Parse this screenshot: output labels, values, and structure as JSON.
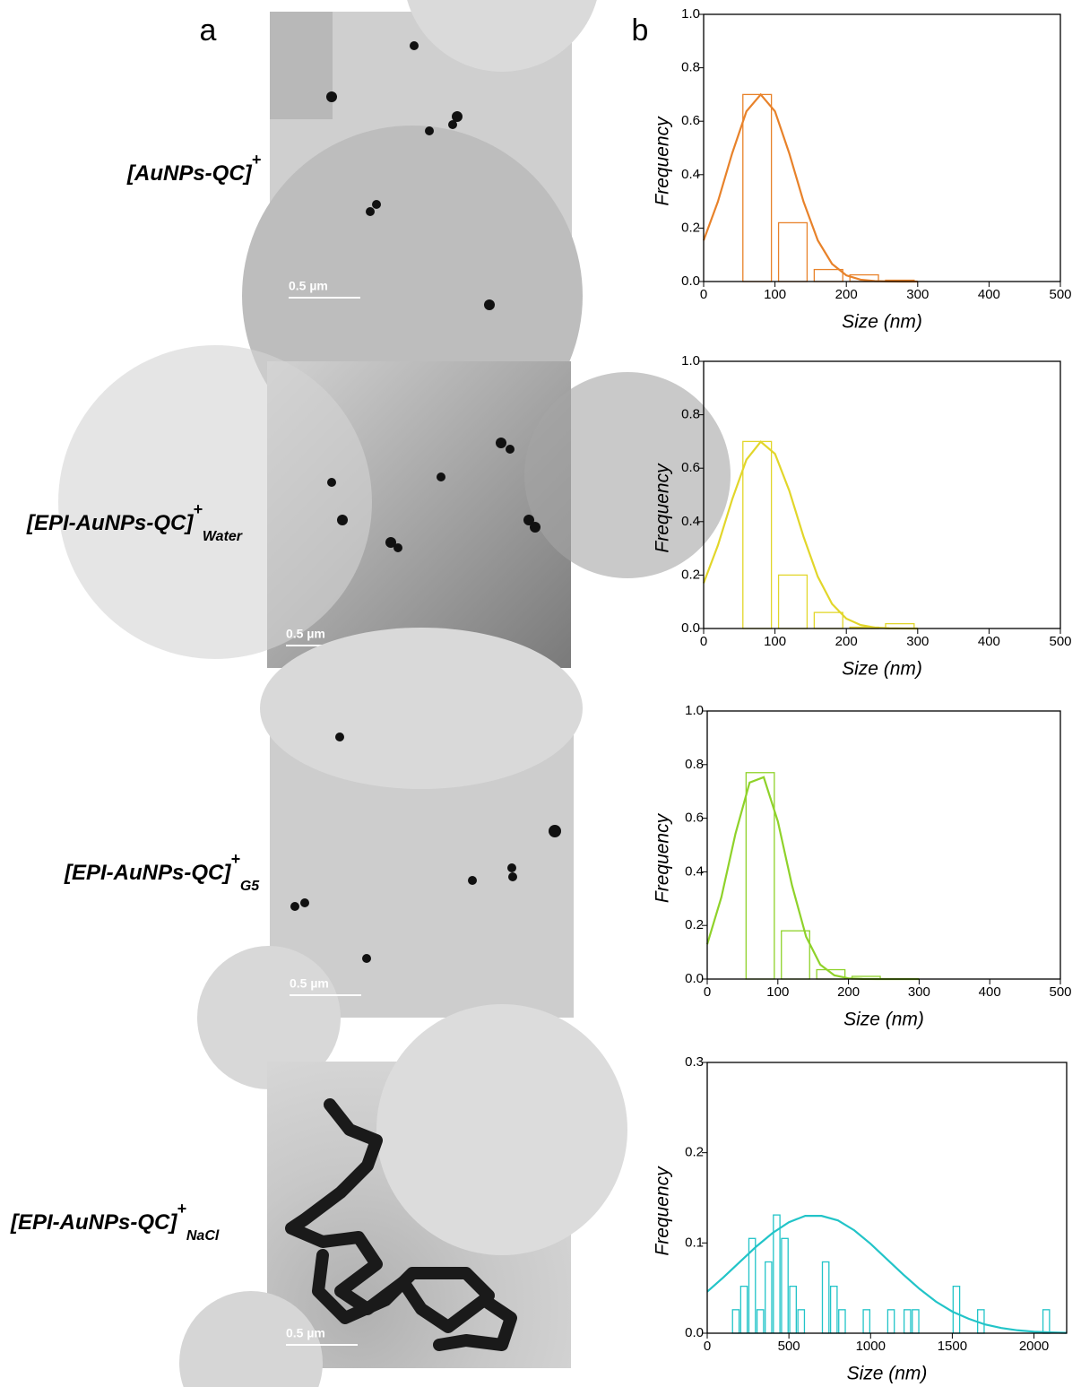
{
  "panel_labels": [
    "a",
    "b"
  ],
  "rows": [
    {
      "label": "[AuNPs-QC]",
      "superscript": "+",
      "scale_bar": "0.5 µm"
    },
    {
      "label": "[EPI-AuNPs-QC]",
      "superscript": "+",
      "subscript": "Water",
      "scale_bar": "0.5 µm"
    },
    {
      "label": "[EPI-AuNPs-QC]",
      "superscript": "+",
      "subscript": "G5",
      "scale_bar": "0.5 µm"
    },
    {
      "label": "[EPI-AuNPs-QC]",
      "superscript": "+",
      "subscript": "NaCl",
      "scale_bar": "0.5 µm"
    }
  ],
  "chart_data": [
    {
      "type": "histogram",
      "xlabel": "Size (nm)",
      "ylabel": "Frequency",
      "color": "#e8822a",
      "bins": [
        50,
        100,
        150,
        200,
        250,
        300
      ],
      "values": [
        0.7,
        0.22,
        0.045,
        0.025,
        0.005
      ],
      "fit": {
        "x": [
          0,
          20,
          40,
          60,
          80,
          100,
          120,
          140,
          160,
          180,
          200,
          220,
          240,
          260,
          280,
          300
        ],
        "values": [
          0.154,
          0.299,
          0.48,
          0.637,
          0.7,
          0.637,
          0.48,
          0.299,
          0.154,
          0.066,
          0.023,
          0.0068,
          0.0017,
          0.0003,
          0,
          0
        ]
      },
      "xlim": [
        0,
        500
      ],
      "ylim": [
        0,
        1
      ],
      "xticks": [
        0,
        100,
        200,
        300,
        400,
        500
      ],
      "yticks": [
        {
          "value": 0,
          "label": "0.0"
        },
        0.2,
        0.4,
        0.6,
        0.8,
        {
          "value": 1,
          "label": "1.0"
        }
      ]
    },
    {
      "type": "histogram",
      "xlabel": "Size (nm)",
      "ylabel": "Frequency",
      "color": "#e2d62a",
      "bins": [
        50,
        100,
        150,
        200,
        250,
        300
      ],
      "values": [
        0.7,
        0.2,
        0.06,
        0.005,
        0.018
      ],
      "fit": {
        "x": [
          0,
          20,
          40,
          60,
          80,
          100,
          120,
          140,
          160,
          180,
          200,
          220,
          240,
          260,
          280,
          300
        ],
        "values": [
          0.17,
          0.311,
          0.483,
          0.632,
          0.699,
          0.654,
          0.516,
          0.344,
          0.194,
          0.092,
          0.037,
          0.013,
          0.0036,
          0.0009,
          0.0002,
          0
        ]
      },
      "xlim": [
        0,
        500
      ],
      "ylim": [
        0,
        1
      ],
      "xticks": [
        0,
        100,
        200,
        300,
        400,
        500
      ],
      "yticks": [
        {
          "value": 0,
          "label": "0.0"
        },
        0.2,
        0.4,
        0.6,
        0.8,
        {
          "value": 1,
          "label": "1.0"
        }
      ]
    },
    {
      "type": "histogram",
      "xlabel": "Size (nm)",
      "ylabel": "Frequency",
      "color": "#8fd22a",
      "bins": [
        50,
        100,
        150,
        200,
        250
      ],
      "values": [
        0.77,
        0.18,
        0.035,
        0.01
      ],
      "fit": {
        "x": [
          0,
          20,
          40,
          60,
          80,
          100,
          120,
          140,
          160,
          180,
          200,
          220,
          240,
          260,
          280,
          300
        ],
        "values": [
          0.13,
          0.305,
          0.542,
          0.733,
          0.753,
          0.588,
          0.35,
          0.158,
          0.054,
          0.014,
          0.0028,
          0.0004,
          0,
          0,
          0,
          0
        ]
      },
      "xlim": [
        0,
        500
      ],
      "ylim": [
        0,
        1
      ],
      "xticks": [
        0,
        100,
        200,
        300,
        400,
        500
      ],
      "yticks": [
        {
          "value": 0,
          "label": "0.0"
        },
        0.2,
        0.4,
        0.6,
        0.8,
        {
          "value": 1,
          "label": "1.0"
        }
      ]
    },
    {
      "type": "histogram",
      "xlabel": "Size (nm)",
      "ylabel": "Frequency",
      "color": "#22c4c8",
      "bins": [
        150,
        200,
        250,
        300,
        350,
        400,
        450,
        500,
        550,
        600,
        650,
        700,
        750,
        800,
        850,
        900,
        950,
        1000,
        1050,
        1100,
        1150,
        1200,
        1250,
        1300,
        1350,
        1400,
        1450,
        1500,
        1550,
        1600,
        1650,
        1700,
        1750,
        1800,
        1850,
        1900,
        1950,
        2000,
        2050,
        2100
      ],
      "values": [
        0.026,
        0.052,
        0.105,
        0.026,
        0.079,
        0.131,
        0.105,
        0.052,
        0.026,
        0,
        0,
        0.079,
        0.052,
        0.026,
        0,
        0,
        0.026,
        0,
        0,
        0.026,
        0,
        0.026,
        0.026,
        0,
        0,
        0,
        0,
        0.052,
        0,
        0,
        0.026,
        0,
        0,
        0,
        0,
        0,
        0,
        0,
        0.026
      ],
      "fit": {
        "x": [
          0,
          100,
          200,
          300,
          400,
          500,
          600,
          700,
          800,
          900,
          1000,
          1100,
          1200,
          1300,
          1400,
          1500,
          1600,
          1700,
          1800,
          1900,
          2000,
          2100,
          2200
        ],
        "values": [
          0.046,
          0.062,
          0.079,
          0.096,
          0.111,
          0.123,
          0.13,
          0.13,
          0.125,
          0.114,
          0.099,
          0.082,
          0.065,
          0.049,
          0.035,
          0.024,
          0.016,
          0.0097,
          0.0058,
          0.0032,
          0.0017,
          0.0009,
          0.0004
        ]
      },
      "xlim": [
        0,
        2200
      ],
      "ylim": [
        0,
        0.3
      ],
      "xticks": [
        0,
        500,
        1000,
        1500,
        2000
      ],
      "yticks": [
        {
          "value": 0,
          "label": "0.0"
        },
        0.1,
        0.2,
        0.3
      ]
    }
  ]
}
